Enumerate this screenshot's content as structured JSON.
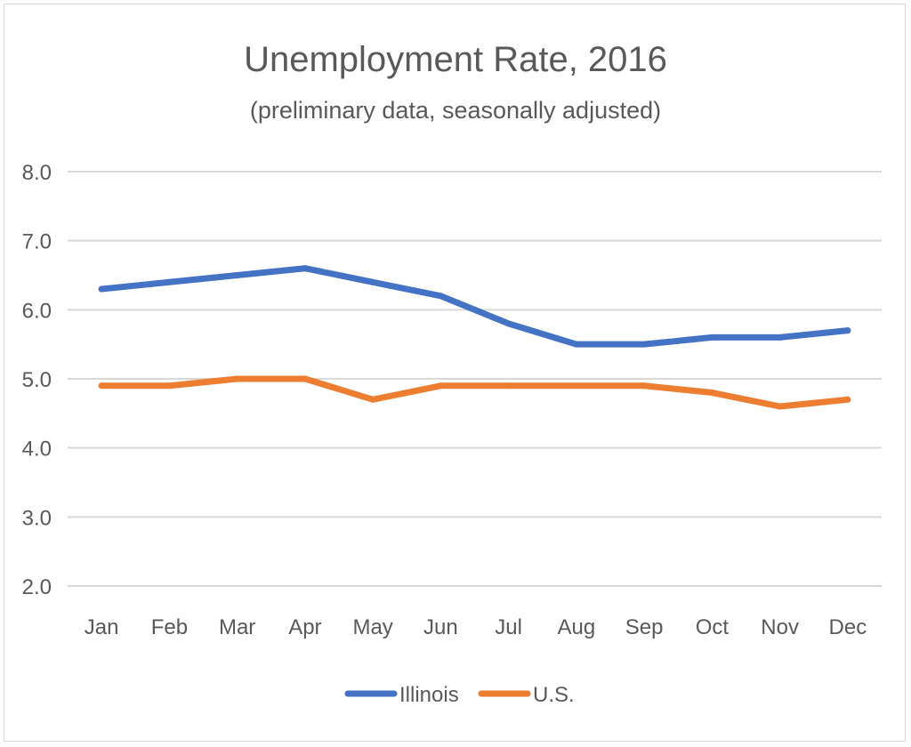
{
  "chart_data": {
    "type": "line",
    "title": "Unemployment Rate, 2016",
    "subtitle": "(preliminary data, seasonally adjusted)",
    "categories": [
      "Jan",
      "Feb",
      "Mar",
      "Apr",
      "May",
      "Jun",
      "Jul",
      "Aug",
      "Sep",
      "Oct",
      "Nov",
      "Dec"
    ],
    "series": [
      {
        "name": "Illinois",
        "color": "#4472c4",
        "values": [
          6.3,
          6.4,
          6.5,
          6.6,
          6.4,
          6.2,
          5.8,
          5.5,
          5.5,
          5.6,
          5.6,
          5.7
        ]
      },
      {
        "name": "U.S.",
        "color": "#ed7d31",
        "values": [
          4.9,
          4.9,
          5.0,
          5.0,
          4.7,
          4.9,
          4.9,
          4.9,
          4.9,
          4.8,
          4.6,
          4.7
        ]
      }
    ],
    "ylim": [
      2.0,
      8.0
    ],
    "yticks": [
      "2.0",
      "3.0",
      "4.0",
      "5.0",
      "6.0",
      "7.0",
      "8.0"
    ],
    "grid": true,
    "legend": "bottom",
    "xlabel": "",
    "ylabel": ""
  }
}
